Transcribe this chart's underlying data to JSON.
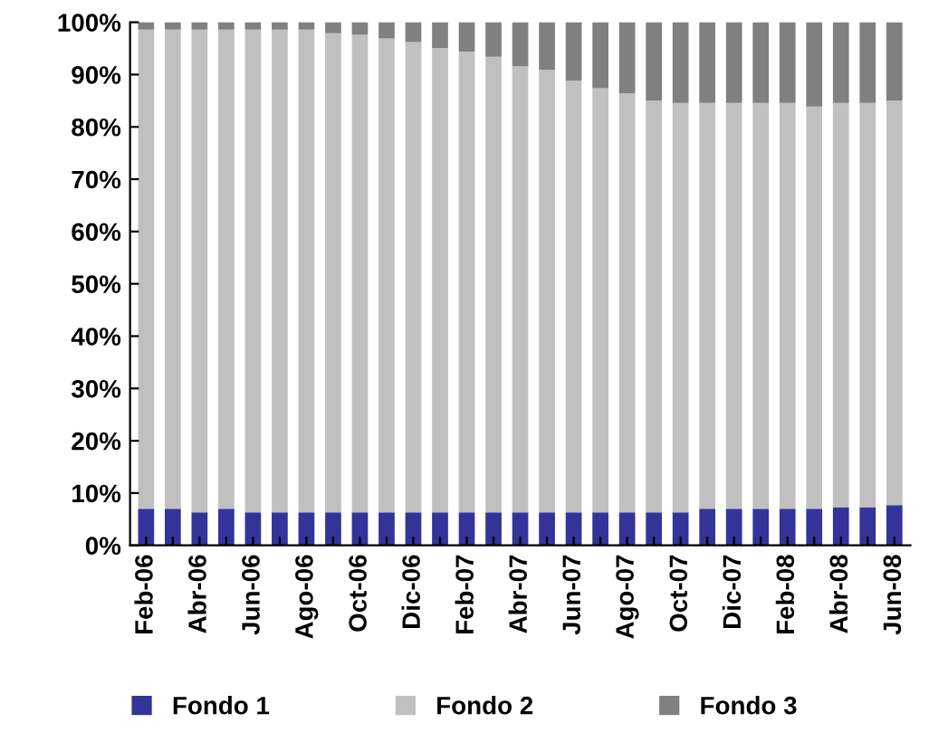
{
  "chart_data": {
    "type": "bar",
    "stacked": true,
    "categories": [
      "Feb-06",
      null,
      "Abr-06",
      null,
      "Jun-06",
      null,
      "Ago-06",
      null,
      "Oct-06",
      null,
      "Dic-06",
      null,
      "Feb-07",
      null,
      "Abr-07",
      null,
      "Jun-07",
      null,
      "Ago-07",
      null,
      "Oct-07",
      null,
      "Dic-07",
      null,
      "Feb-08",
      null,
      "Abr-08",
      null,
      "Jun-08"
    ],
    "series": [
      {
        "name": "Fondo 1",
        "color": "#333399",
        "values": [
          7,
          7,
          6.3,
          7,
          6.3,
          6.3,
          6.3,
          6.3,
          6.3,
          6.3,
          6.3,
          6.3,
          6.3,
          6.3,
          6.3,
          6.3,
          6.3,
          6.3,
          6.3,
          6.3,
          6.3,
          7,
          7,
          7,
          7,
          7,
          7.3,
          7.3,
          7.7
        ]
      },
      {
        "name": "Fondo 2",
        "color": "#c0c0c0",
        "values": [
          91.6,
          91.6,
          92.3,
          91.6,
          92.3,
          92.3,
          92.3,
          91.6,
          91.3,
          90.6,
          89.9,
          88.8,
          88.1,
          87.1,
          85.3,
          84.6,
          82.5,
          81.1,
          80.1,
          78.7,
          78.3,
          77.6,
          77.6,
          77.6,
          77.6,
          76.9,
          77.3,
          77.3,
          77.3
        ]
      },
      {
        "name": "Fondo 3",
        "color": "#808080",
        "values": [
          1.4,
          1.4,
          1.4,
          1.4,
          1.4,
          1.4,
          1.4,
          2.1,
          2.4,
          3.1,
          3.8,
          4.9,
          5.6,
          6.6,
          8.4,
          9.1,
          11.2,
          12.6,
          13.6,
          15.0,
          15.4,
          15.4,
          15.4,
          15.4,
          15.4,
          16.1,
          15.4,
          15.4,
          15.0
        ]
      }
    ],
    "ylim": [
      0,
      100
    ],
    "yticks": [
      {
        "value": 0,
        "label": "0%"
      },
      {
        "value": 10,
        "label": "10%"
      },
      {
        "value": 20,
        "label": "20%"
      },
      {
        "value": 30,
        "label": "30%"
      },
      {
        "value": 40,
        "label": "40%"
      },
      {
        "value": 50,
        "label": "50%"
      },
      {
        "value": 60,
        "label": "60%"
      },
      {
        "value": 70,
        "label": "70%"
      },
      {
        "value": 80,
        "label": "80%"
      },
      {
        "value": 90,
        "label": "90%"
      },
      {
        "value": 100,
        "label": "100%"
      }
    ],
    "grid": false,
    "legend": "bottom"
  }
}
